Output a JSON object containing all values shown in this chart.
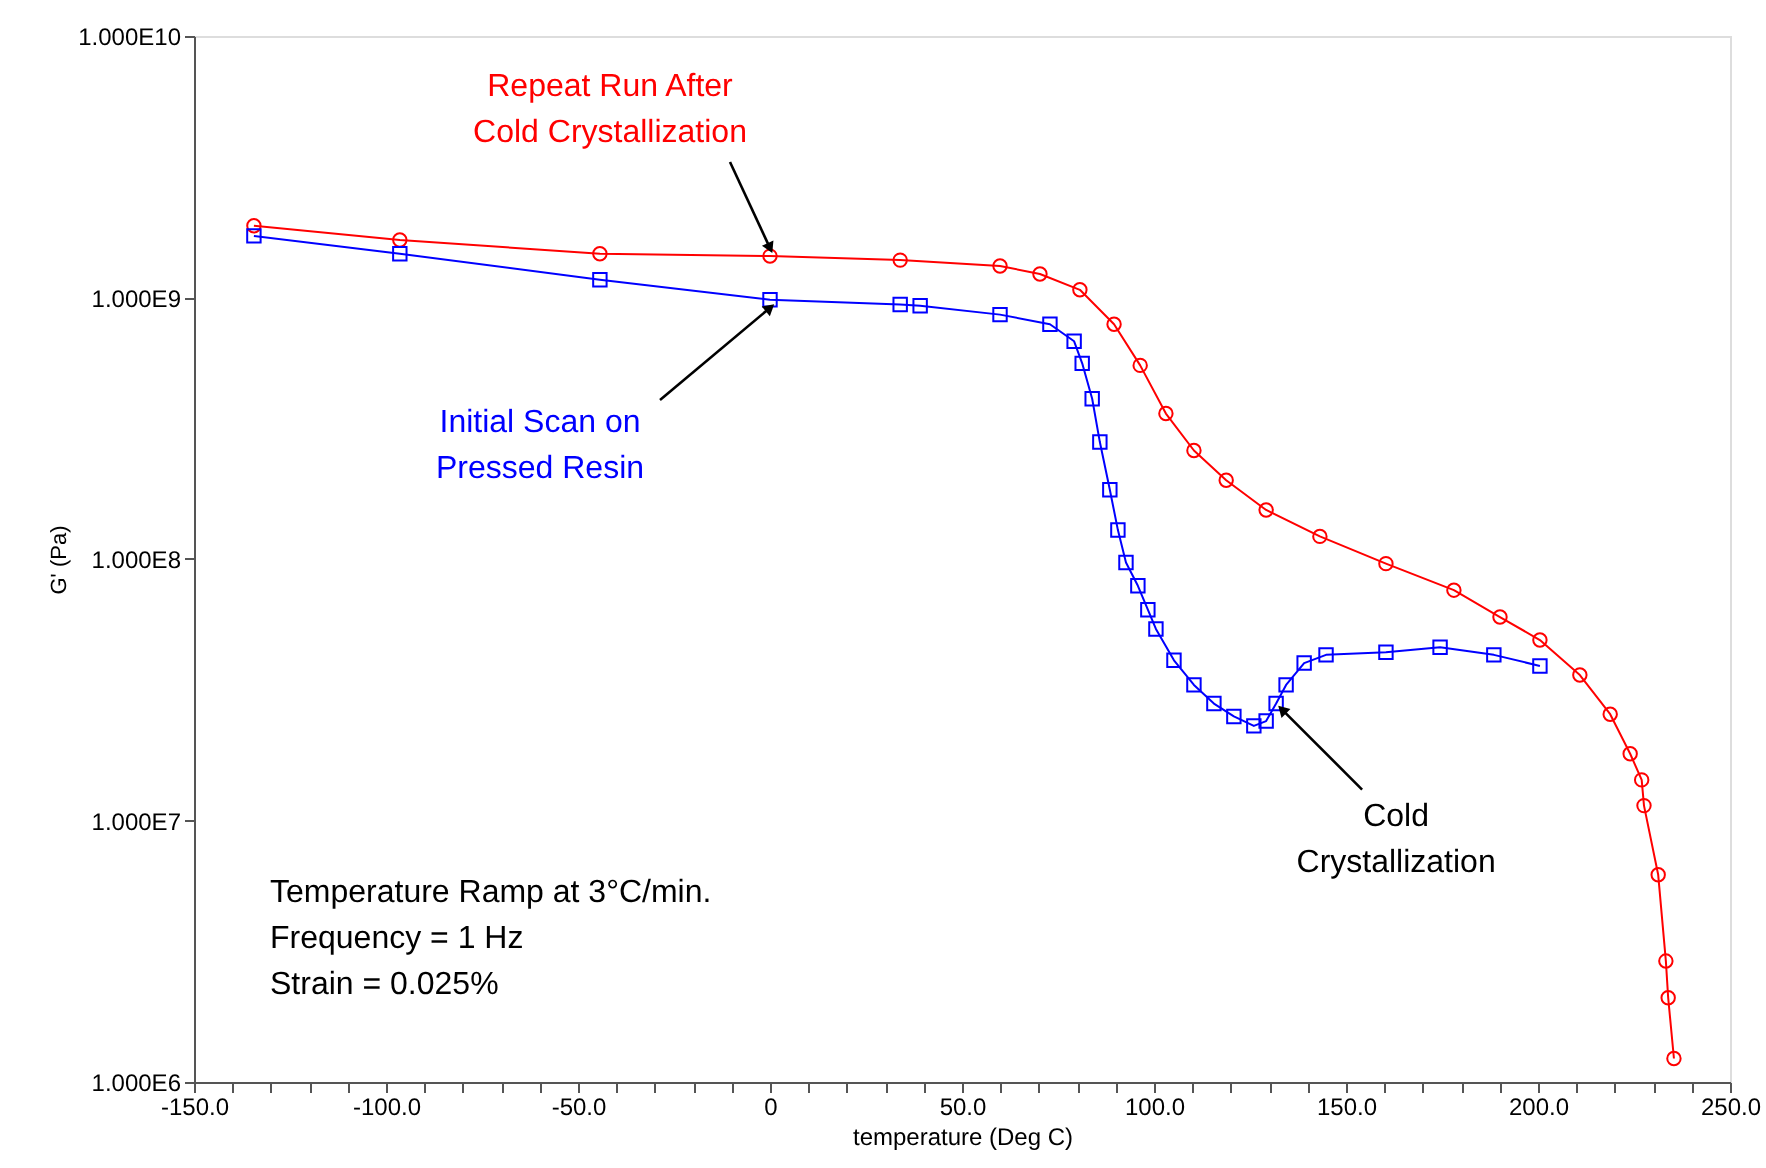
{
  "chart_data": {
    "type": "line",
    "xlabel": "temperature (Deg C)",
    "ylabel": "G' (Pa)",
    "log": "y",
    "grid": false,
    "legend": false,
    "xlim": [
      -150,
      250
    ],
    "ylim": [
      1000000,
      10000000000
    ],
    "xticks": [
      {
        "value": -150,
        "label": "-150.0"
      },
      {
        "value": -140,
        "label": null
      },
      {
        "value": -130,
        "label": null
      },
      {
        "value": -120,
        "label": null
      },
      {
        "value": -110,
        "label": null
      },
      {
        "value": -100,
        "label": "-100.0"
      },
      {
        "value": -90,
        "label": null
      },
      {
        "value": -80,
        "label": null
      },
      {
        "value": -70,
        "label": null
      },
      {
        "value": -60,
        "label": null
      },
      {
        "value": -50,
        "label": "-50.0"
      },
      {
        "value": -40,
        "label": null
      },
      {
        "value": -30,
        "label": null
      },
      {
        "value": -20,
        "label": null
      },
      {
        "value": -10,
        "label": null
      },
      0,
      {
        "value": 10,
        "label": null
      },
      {
        "value": 20,
        "label": null
      },
      {
        "value": 30,
        "label": null
      },
      {
        "value": 40,
        "label": null
      },
      {
        "value": 50,
        "label": "50.0"
      },
      {
        "value": 60,
        "label": null
      },
      {
        "value": 70,
        "label": null
      },
      {
        "value": 80,
        "label": null
      },
      {
        "value": 90,
        "label": null
      },
      {
        "value": 100,
        "label": "100.0"
      },
      {
        "value": 110,
        "label": null
      },
      {
        "value": 120,
        "label": null
      },
      {
        "value": 130,
        "label": null
      },
      {
        "value": 140,
        "label": null
      },
      {
        "value": 150,
        "label": "150.0"
      },
      {
        "value": 160,
        "label": null
      },
      {
        "value": 170,
        "label": null
      },
      {
        "value": 180,
        "label": null
      },
      {
        "value": 190,
        "label": null
      },
      {
        "value": 200,
        "label": "200.0"
      },
      {
        "value": 210,
        "label": null
      },
      {
        "value": 220,
        "label": null
      },
      {
        "value": 230,
        "label": null
      },
      {
        "value": 240,
        "label": null
      },
      {
        "value": 250,
        "label": "250.0"
      }
    ],
    "yticks": [
      {
        "value": 1000000,
        "label": "1.000E6"
      },
      {
        "value": 10000000,
        "label": "1.000E7"
      },
      {
        "value": 100000000,
        "label": "1.000E8"
      },
      {
        "value": 1000000000,
        "label": "1.000E9"
      },
      {
        "value": 10000000000,
        "label": "1.000E10"
      }
    ],
    "series": [
      {
        "name": "Repeat Run After Cold Crystallization",
        "color": "#ff0000",
        "marker": "circle",
        "x": [
          -134.4,
          -96.4,
          -44.3,
          0,
          33.9,
          59.9,
          70.3,
          80.7,
          89.6,
          96.4,
          103.1,
          110.4,
          118.8,
          129.2,
          143.2,
          160.4,
          178.1,
          190.1,
          200.5,
          210.9,
          218.8,
          224,
          227,
          227.6,
          231.3,
          233.3,
          233.9,
          235.4
        ],
        "values": [
          1880000000,
          1660000000,
          1470000000,
          1440000000,
          1390000000,
          1320000000,
          1230000000,
          1070000000,
          790000000,
          550000000,
          360000000,
          260000000,
          200000000,
          154000000,
          122000000,
          96000000,
          76000000,
          60000000,
          49000000,
          36000000,
          25500000,
          18000000,
          14300000,
          11400000,
          6200000,
          2900000,
          2100000,
          1230000
        ]
      },
      {
        "name": "Initial Scan on Pressed Resin",
        "color": "#0000ff",
        "marker": "square",
        "x": [
          -134.4,
          -96.4,
          -44.3,
          0,
          33.9,
          39.1,
          59.9,
          72.9,
          79.2,
          81.3,
          83.9,
          85.9,
          88.5,
          90.6,
          92.7,
          95.8,
          98.4,
          100.5,
          105.2,
          110.4,
          115.6,
          120.8,
          126,
          129.2,
          131.8,
          134.4,
          139.1,
          144.8,
          160.4,
          174.5,
          188.5,
          200.5
        ],
        "values": [
          1720000000,
          1470000000,
          1170000000,
          980000000,
          940000000,
          930000000,
          860000000,
          790000000,
          680000000,
          560000000,
          410000000,
          280000000,
          184000000,
          129000000,
          97000000,
          79000000,
          64000000,
          54000000,
          41000000,
          33000000,
          28000000,
          25000000,
          23000000,
          24000000,
          28000000,
          33000000,
          40000000,
          43000000,
          44000000,
          46000000,
          43000000,
          39000000
        ]
      }
    ],
    "annotations": [
      {
        "text": "Cold Crystallization",
        "x": 131.8,
        "y": 28000000
      },
      "Temperature Ramp at 3°C/min.",
      "Frequency = 1 Hz",
      "Strain = 0.025%"
    ]
  }
}
